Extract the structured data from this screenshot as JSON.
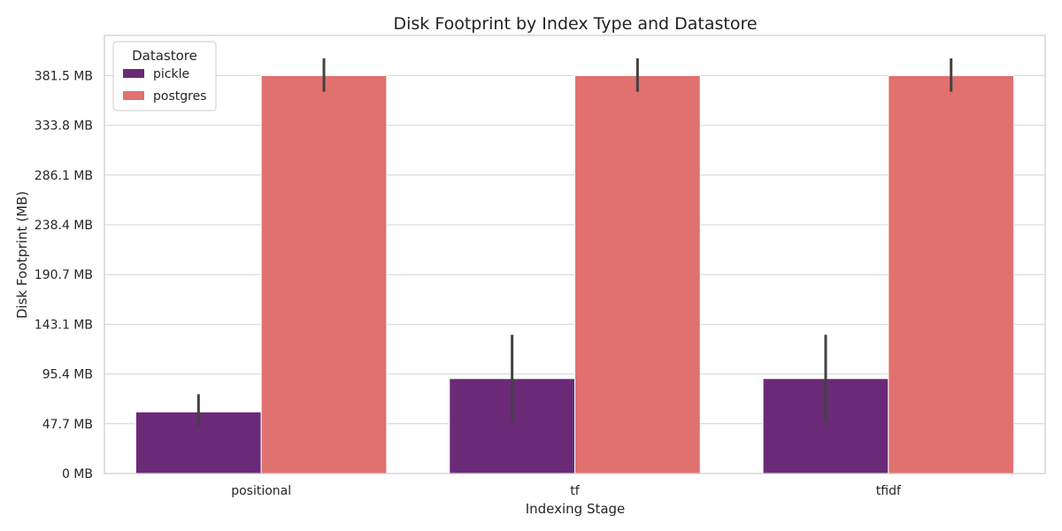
{
  "chart_data": {
    "type": "bar",
    "title": "Disk Footprint by Index Type and Datastore",
    "xlabel": "Indexing Stage",
    "ylabel": "Disk Footprint (MB)",
    "categories": [
      "positional",
      "tf",
      "tfidf"
    ],
    "y_ticks": [
      "0 MB",
      "47.7 MB",
      "95.4 MB",
      "143.1 MB",
      "190.7 MB",
      "238.4 MB",
      "286.1 MB",
      "333.8 MB",
      "381.5 MB"
    ],
    "y_tick_values": [
      0,
      47.7,
      95.4,
      143.1,
      190.7,
      238.4,
      286.1,
      333.8,
      381.5
    ],
    "ylim": [
      0,
      420
    ],
    "grid": true,
    "legend": {
      "title": "Datastore",
      "position": "top-left"
    },
    "series": [
      {
        "name": "pickle",
        "color": "#6b2a78",
        "values": [
          59,
          91,
          91
        ],
        "err_low": [
          45,
          50,
          50
        ],
        "err_high": [
          76,
          133,
          133
        ]
      },
      {
        "name": "postgres",
        "color": "#e0716e",
        "values": [
          381.5,
          381.5,
          381.5
        ],
        "err_low": [
          366,
          366,
          366
        ],
        "err_high": [
          398,
          398,
          398
        ]
      }
    ]
  }
}
